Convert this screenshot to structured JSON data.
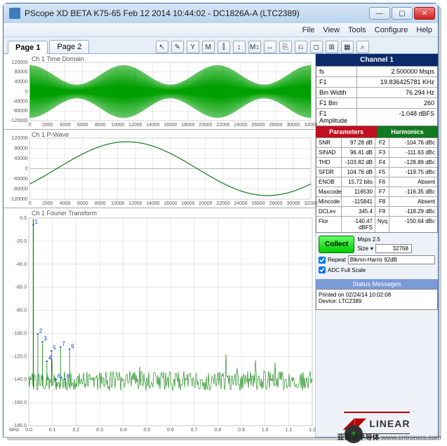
{
  "window": {
    "title": "PScope XD BETA K75-65 Feb 12 2014 10:44:02 - DC1826A-A (LTC2389)"
  },
  "menu": [
    "File",
    "View",
    "Tools",
    "Configure",
    "Help"
  ],
  "tabs": [
    "Page 1",
    "Page 2"
  ],
  "active_tab": 0,
  "toolbar_icons": [
    "↖",
    "✎",
    "Y",
    "M",
    "⫿",
    "↕",
    "M↕",
    "↔",
    "⎘",
    "⎌",
    "◻",
    "⊞",
    "▦",
    "⌕"
  ],
  "plots": {
    "time": {
      "title": "Ch 1 Time Domain",
      "yticks": [
        "120000",
        "80000",
        "40000",
        "0",
        "-40000",
        "-80000",
        "-120000"
      ],
      "xticks": [
        "0",
        "2000",
        "4000",
        "6000",
        "8000",
        "10000",
        "12000",
        "14000",
        "16000",
        "18000",
        "20000",
        "22000",
        "24000",
        "26000",
        "28000",
        "30000",
        "32000"
      ],
      "xlim": [
        0,
        32768
      ],
      "ylim": [
        -130000,
        130000
      ],
      "waveform_color": "#00a000",
      "bg": "#ffffff",
      "grid": "#d0d0d0"
    },
    "pwave": {
      "title": "Ch 1 P-Wave",
      "yticks": [
        "120000",
        "80000",
        "40000",
        "0",
        "-40000",
        "-80000",
        "-120000"
      ],
      "xticks": [
        "0",
        "2000",
        "4000",
        "6000",
        "8000",
        "10000",
        "12000",
        "14000",
        "16000",
        "18000",
        "20000",
        "22000",
        "24000",
        "26000",
        "28000",
        "30000",
        "32000"
      ],
      "xlim": [
        0,
        32768
      ],
      "ylim": [
        -130000,
        130000
      ],
      "line_color": "#107a20",
      "bg": "#ffffff",
      "grid": "#d0d0d0"
    },
    "fft": {
      "title": "Ch 1 Fourier Transform",
      "yticks": [
        "0.0",
        "-20.0",
        "-40.0",
        "-60.0",
        "-80.0",
        "-100.0",
        "-120.0",
        "-140.0",
        "-160.0",
        "-180.0"
      ],
      "xticks": [
        "0.0",
        "0.1",
        "0.2",
        "0.3",
        "0.4",
        "0.5",
        "0.6",
        "0.7",
        "0.8",
        "0.9",
        "1.0",
        "1.1",
        "1.2"
      ],
      "xunit": "MHz",
      "xlim": [
        0,
        1.25
      ],
      "ylim": [
        -185,
        0
      ],
      "trace_color": "#008000",
      "marker_color": "#0040d0",
      "markers": [
        "1",
        "2",
        "3",
        "4",
        "5",
        "6",
        "7",
        "8",
        "9"
      ],
      "bg": "#ffffff",
      "grid": "#d0d0d0"
    }
  },
  "channel": {
    "header": "Channel 1",
    "rows": [
      {
        "k": "fs",
        "v": "2.500000 Msps"
      },
      {
        "k": "F1",
        "v": "19.836425781 KHz"
      },
      {
        "k": "Bin Width",
        "v": "76.294 Hz"
      },
      {
        "k": "F1 Bin",
        "v": "260"
      },
      {
        "k": "F1 Amplitude",
        "v": "-1.048 dBFS"
      }
    ]
  },
  "ph": {
    "param_header": "Parameters",
    "harm_header": "Harmonics",
    "rows": [
      {
        "pk": "SNR",
        "pv": "97.28 dB",
        "hk": "F2",
        "hv": "-104.76 dBc"
      },
      {
        "pk": "SINAD",
        "pv": "96.41 dB",
        "hk": "F3",
        "hv": "-111.63 dBc"
      },
      {
        "pk": "THD",
        "pv": "-103.82 dB",
        "hk": "F4",
        "hv": "-128.89 dBc"
      },
      {
        "pk": "SFDR",
        "pv": "104.76 dB",
        "hk": "F5",
        "hv": "-119.75 dBc"
      },
      {
        "pk": "ENOB",
        "pv": "15.72 bits",
        "hk": "F6",
        "hv": "Absent"
      },
      {
        "pk": "Maxcode",
        "pv": "116530",
        "hk": "F7",
        "hv": "-116.35 dBc"
      },
      {
        "pk": "Mincode",
        "pv": "-115841",
        "hk": "F8",
        "hv": "Absent"
      },
      {
        "pk": "DCLev",
        "pv": "345.4",
        "hk": "F9",
        "hv": "-118.29 dBc"
      },
      {
        "pk": "Flor",
        "pv": "-140.47 dBFS",
        "hk": "Nyq",
        "hv": "-150.64 dBc"
      }
    ]
  },
  "collect": {
    "button": "Collect",
    "msps_label": "Msps",
    "msps_value": "2.5",
    "size_label": "Size",
    "size_value": "32768",
    "repeat_label": "Repeat",
    "repeat_checked": true,
    "window_value": "Blkmn-Harris 92dB",
    "adc_label": "ADC Full Scale",
    "adc_checked": true
  },
  "status": {
    "header": "Status Messages",
    "line1": "Printed on 02/24/14 10:02:08",
    "line2": "Device: LTC2389"
  },
  "logo_text": "LINEAR",
  "watermark": "www.cntronics.com",
  "overlay_text": "亚德诺半导体"
}
